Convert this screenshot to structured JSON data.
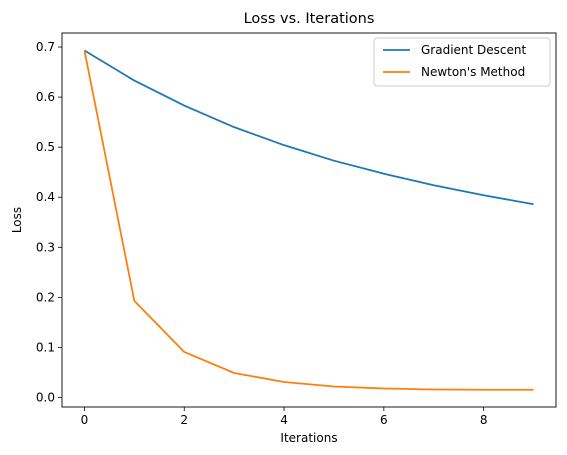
{
  "chart_data": {
    "type": "line",
    "title": "Loss vs. Iterations",
    "xlabel": "Iterations",
    "ylabel": "Loss",
    "xlim": [
      -0.45,
      9.45
    ],
    "ylim": [
      -0.0189,
      0.728
    ],
    "xticks": [
      0,
      2,
      4,
      6,
      8
    ],
    "xtick_labels": [
      "0",
      "2",
      "4",
      "6",
      "8"
    ],
    "yticks": [
      0.0,
      0.1,
      0.2,
      0.3,
      0.4,
      0.5,
      0.6,
      0.7
    ],
    "ytick_labels": [
      "0.0",
      "0.1",
      "0.2",
      "0.3",
      "0.4",
      "0.5",
      "0.6",
      "0.7"
    ],
    "grid": false,
    "legend_position": "top-right",
    "x": [
      0,
      1,
      2,
      3,
      4,
      5,
      6,
      7,
      8,
      9
    ],
    "series": [
      {
        "name": "Gradient Descent",
        "color": "#1f77b4",
        "values": [
          0.693,
          0.633,
          0.583,
          0.54,
          0.504,
          0.473,
          0.447,
          0.424,
          0.404,
          0.386
        ]
      },
      {
        "name": "Newton's Method",
        "color": "#ff7f0e",
        "values": [
          0.693,
          0.193,
          0.091,
          0.049,
          0.031,
          0.022,
          0.018,
          0.016,
          0.0155,
          0.0155
        ]
      }
    ]
  }
}
